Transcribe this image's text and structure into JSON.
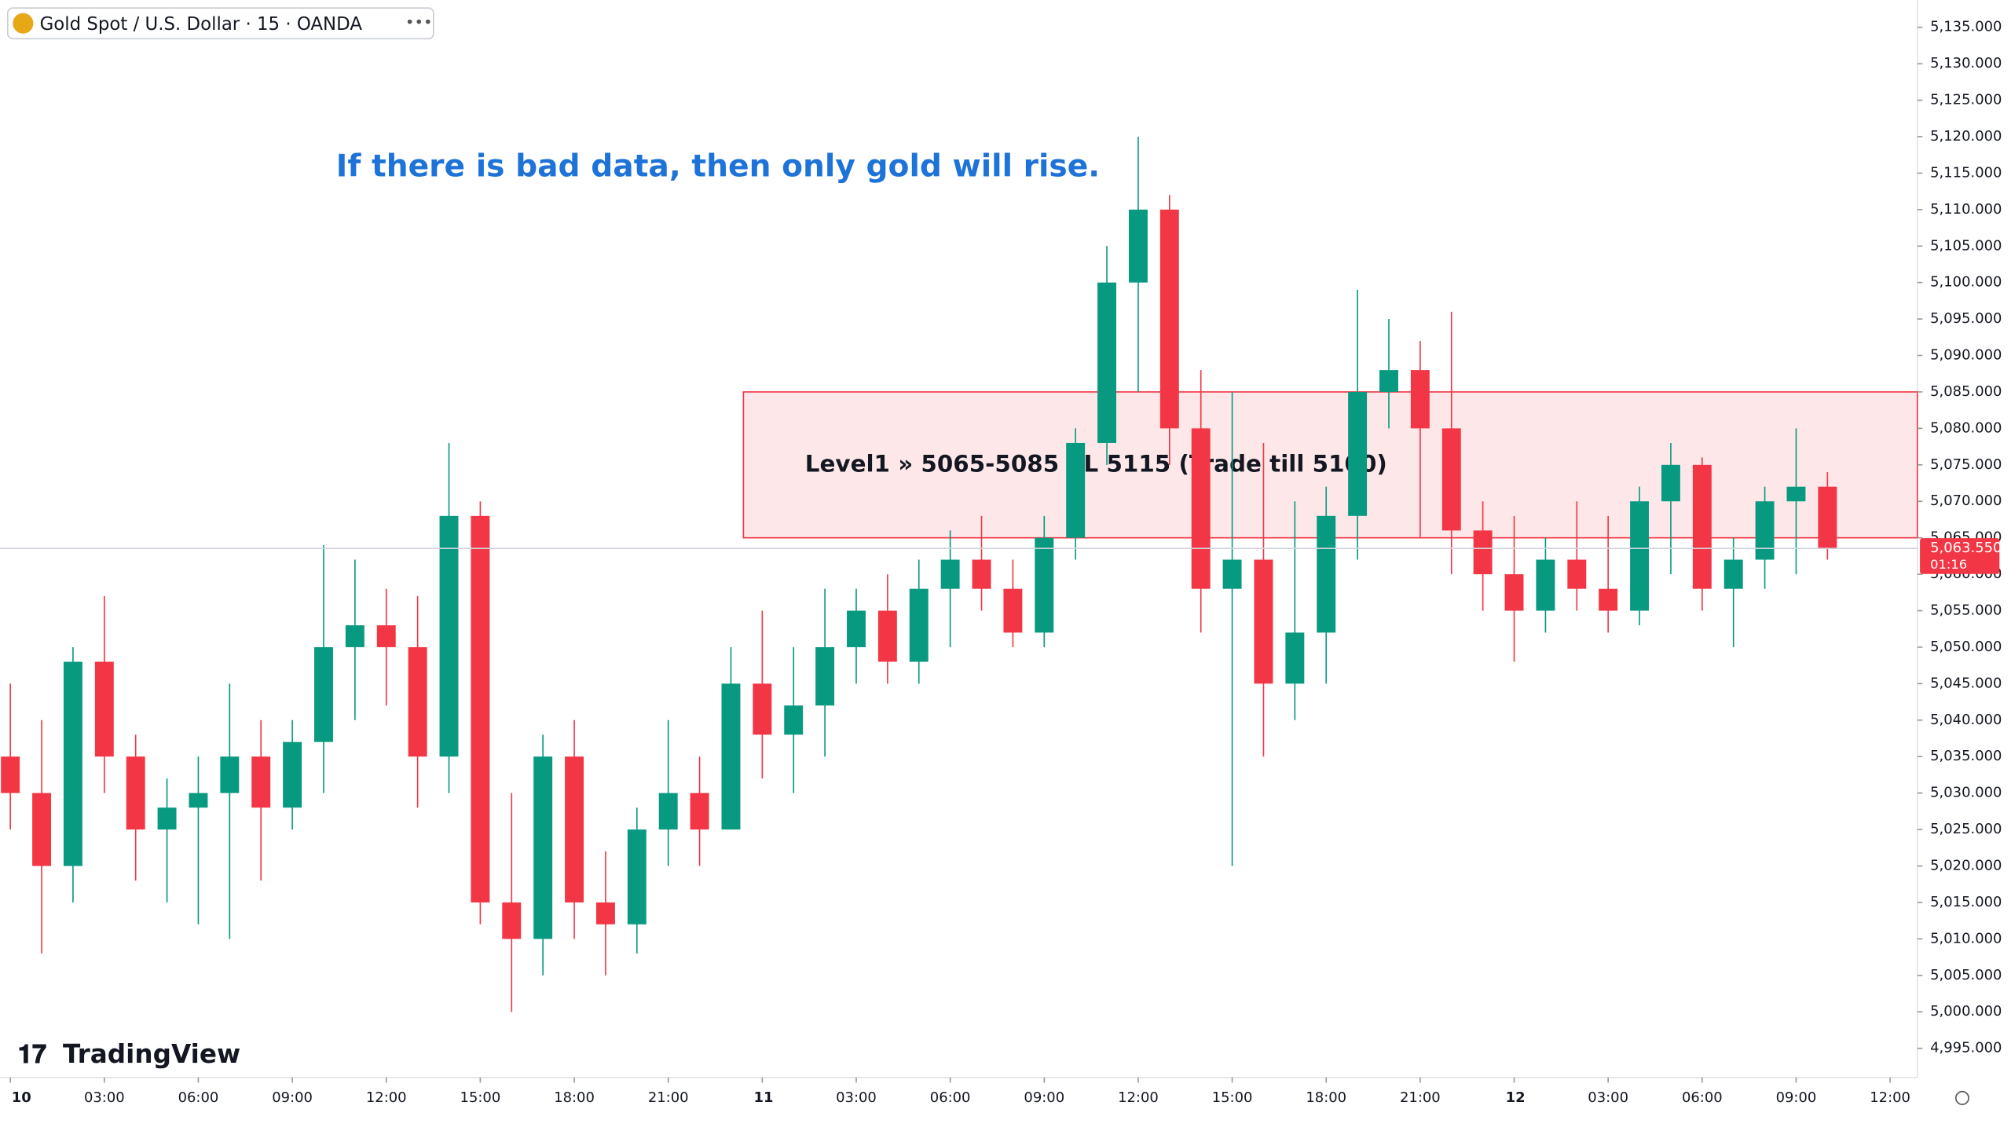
{
  "chart_data": {
    "type": "candlestick",
    "symbol": "Gold Spot / U.S. Dollar · 15 · OANDA",
    "brand": "TradingView",
    "annotation": "If there is bad data, then only gold will rise.",
    "zone": {
      "label": "Level1 » 5065-5085 SL 5115 (Trade till 5100)",
      "from": 5065,
      "to": 5085,
      "x_start": 23.4
    },
    "last_price": {
      "value": 5063.55,
      "label": "5,063.550"
    },
    "countdown": "01:16",
    "up_color": "#089981",
    "down_color": "#f23645",
    "x": [
      0,
      1,
      2,
      3,
      4,
      5,
      6,
      7,
      8,
      9,
      10,
      11,
      12,
      13,
      14,
      15,
      16,
      17,
      18,
      19,
      20,
      21,
      22,
      23,
      24,
      25,
      26,
      27,
      28,
      29,
      30,
      31,
      32,
      33,
      34,
      35,
      36,
      37,
      38,
      39,
      40,
      41,
      42,
      43,
      44,
      45,
      46,
      47,
      48,
      49,
      50,
      51,
      52,
      53,
      54,
      55,
      56,
      57,
      58
    ],
    "open": [
      5035,
      5030,
      5020,
      5048,
      5035,
      5025,
      5028,
      5030,
      5035,
      5028,
      5037,
      5050,
      5053,
      5050,
      5035,
      5068,
      5015,
      5010,
      5035,
      5015,
      5012,
      5025,
      5030,
      5025,
      5045,
      5038,
      5042,
      5050,
      5055,
      5048,
      5058,
      5062,
      5058,
      5052,
      5065,
      5078,
      5100,
      5110,
      5080,
      5058,
      5062,
      5045,
      5052,
      5068,
      5085,
      5088,
      5080,
      5066,
      5060,
      5055,
      5062,
      5058,
      5055,
      5070,
      5075,
      5058,
      5062,
      5070,
      5072
    ],
    "high": [
      5045,
      5040,
      5050,
      5057,
      5038,
      5032,
      5035,
      5045,
      5040,
      5040,
      5064,
      5062,
      5058,
      5057,
      5078,
      5070,
      5030,
      5038,
      5040,
      5022,
      5028,
      5040,
      5035,
      5050,
      5055,
      5050,
      5058,
      5058,
      5060,
      5062,
      5066,
      5068,
      5062,
      5068,
      5080,
      5105,
      5120,
      5112,
      5088,
      5085,
      5078,
      5070,
      5072,
      5099,
      5095,
      5092,
      5096,
      5070,
      5068,
      5065,
      5070,
      5068,
      5072,
      5078,
      5076,
      5065,
      5072,
      5080,
      5074
    ],
    "low": [
      5025,
      5008,
      5015,
      5030,
      5018,
      5015,
      5012,
      5010,
      5018,
      5025,
      5030,
      5040,
      5042,
      5028,
      5030,
      5012,
      5000,
      5005,
      5010,
      5005,
      5008,
      5020,
      5020,
      5025,
      5032,
      5030,
      5035,
      5045,
      5045,
      5045,
      5050,
      5055,
      5050,
      5050,
      5062,
      5075,
      5085,
      5075,
      5052,
      5020,
      5035,
      5040,
      5045,
      5062,
      5080,
      5065,
      5060,
      5055,
      5048,
      5052,
      5055,
      5052,
      5053,
      5060,
      5055,
      5050,
      5058,
      5060,
      5062
    ],
    "close": [
      5030,
      5020,
      5048,
      5035,
      5025,
      5028,
      5030,
      5035,
      5028,
      5037,
      5050,
      5053,
      5050,
      5035,
      5068,
      5015,
      5010,
      5035,
      5015,
      5012,
      5025,
      5030,
      5025,
      5045,
      5038,
      5042,
      5050,
      5055,
      5048,
      5058,
      5062,
      5058,
      5052,
      5065,
      5078,
      5100,
      5110,
      5080,
      5058,
      5062,
      5045,
      5052,
      5068,
      5085,
      5088,
      5080,
      5066,
      5060,
      5055,
      5062,
      5058,
      5055,
      5070,
      5075,
      5058,
      5062,
      5070,
      5072,
      5063.55
    ],
    "xlim": [
      -0.33,
      60.87
    ],
    "xticks": [
      {
        "value": 0,
        "label": "10"
      },
      {
        "value": 3,
        "label": "03:00"
      },
      {
        "value": 6,
        "label": "06:00"
      },
      {
        "value": 9,
        "label": "09:00"
      },
      {
        "value": 12,
        "label": "12:00"
      },
      {
        "value": 15,
        "label": "15:00"
      },
      {
        "value": 18,
        "label": "18:00"
      },
      {
        "value": 21,
        "label": "21:00"
      },
      {
        "value": 24,
        "label": "11"
      },
      {
        "value": 27,
        "label": "03:00"
      },
      {
        "value": 30,
        "label": "06:00"
      },
      {
        "value": 33,
        "label": "09:00"
      },
      {
        "value": 36,
        "label": "12:00"
      },
      {
        "value": 39,
        "label": "15:00"
      },
      {
        "value": 42,
        "label": "18:00"
      },
      {
        "value": 45,
        "label": "21:00"
      },
      {
        "value": 48,
        "label": "12"
      },
      {
        "value": 51,
        "label": "03:00"
      },
      {
        "value": 54,
        "label": "06:00"
      },
      {
        "value": 57,
        "label": "09:00"
      },
      {
        "value": 60,
        "label": "12:00"
      }
    ],
    "ylim": [
      4991,
      5138.7
    ],
    "yticks": [
      {
        "value": 4995,
        "label": "4,995.000"
      },
      {
        "value": 5000,
        "label": "5,000.000"
      },
      {
        "value": 5005,
        "label": "5,005.000"
      },
      {
        "value": 5010,
        "label": "5,010.000"
      },
      {
        "value": 5015,
        "label": "5,015.000"
      },
      {
        "value": 5020,
        "label": "5,020.000"
      },
      {
        "value": 5025,
        "label": "5,025.000"
      },
      {
        "value": 5030,
        "label": "5,030.000"
      },
      {
        "value": 5035,
        "label": "5,035.000"
      },
      {
        "value": 5040,
        "label": "5,040.000"
      },
      {
        "value": 5045,
        "label": "5,045.000"
      },
      {
        "value": 5050,
        "label": "5,050.000"
      },
      {
        "value": 5055,
        "label": "5,055.000"
      },
      {
        "value": 5060,
        "label": "5,060.000"
      },
      {
        "value": 5065,
        "label": "5,065.000"
      },
      {
        "value": 5070,
        "label": "5,070.000"
      },
      {
        "value": 5075,
        "label": "5,075.000"
      },
      {
        "value": 5080,
        "label": "5,080.000"
      },
      {
        "value": 5085,
        "label": "5,085.000"
      },
      {
        "value": 5090,
        "label": "5,090.000"
      },
      {
        "value": 5095,
        "label": "5,095.000"
      },
      {
        "value": 5100,
        "label": "5,100.000"
      },
      {
        "value": 5105,
        "label": "5,105.000"
      },
      {
        "value": 5110,
        "label": "5,110.000"
      },
      {
        "value": 5115,
        "label": "5,115.000"
      },
      {
        "value": 5120,
        "label": "5,120.000"
      },
      {
        "value": 5125,
        "label": "5,125.000"
      },
      {
        "value": 5130,
        "label": "5,130.000"
      },
      {
        "value": 5135,
        "label": "5,135.000"
      }
    ]
  }
}
